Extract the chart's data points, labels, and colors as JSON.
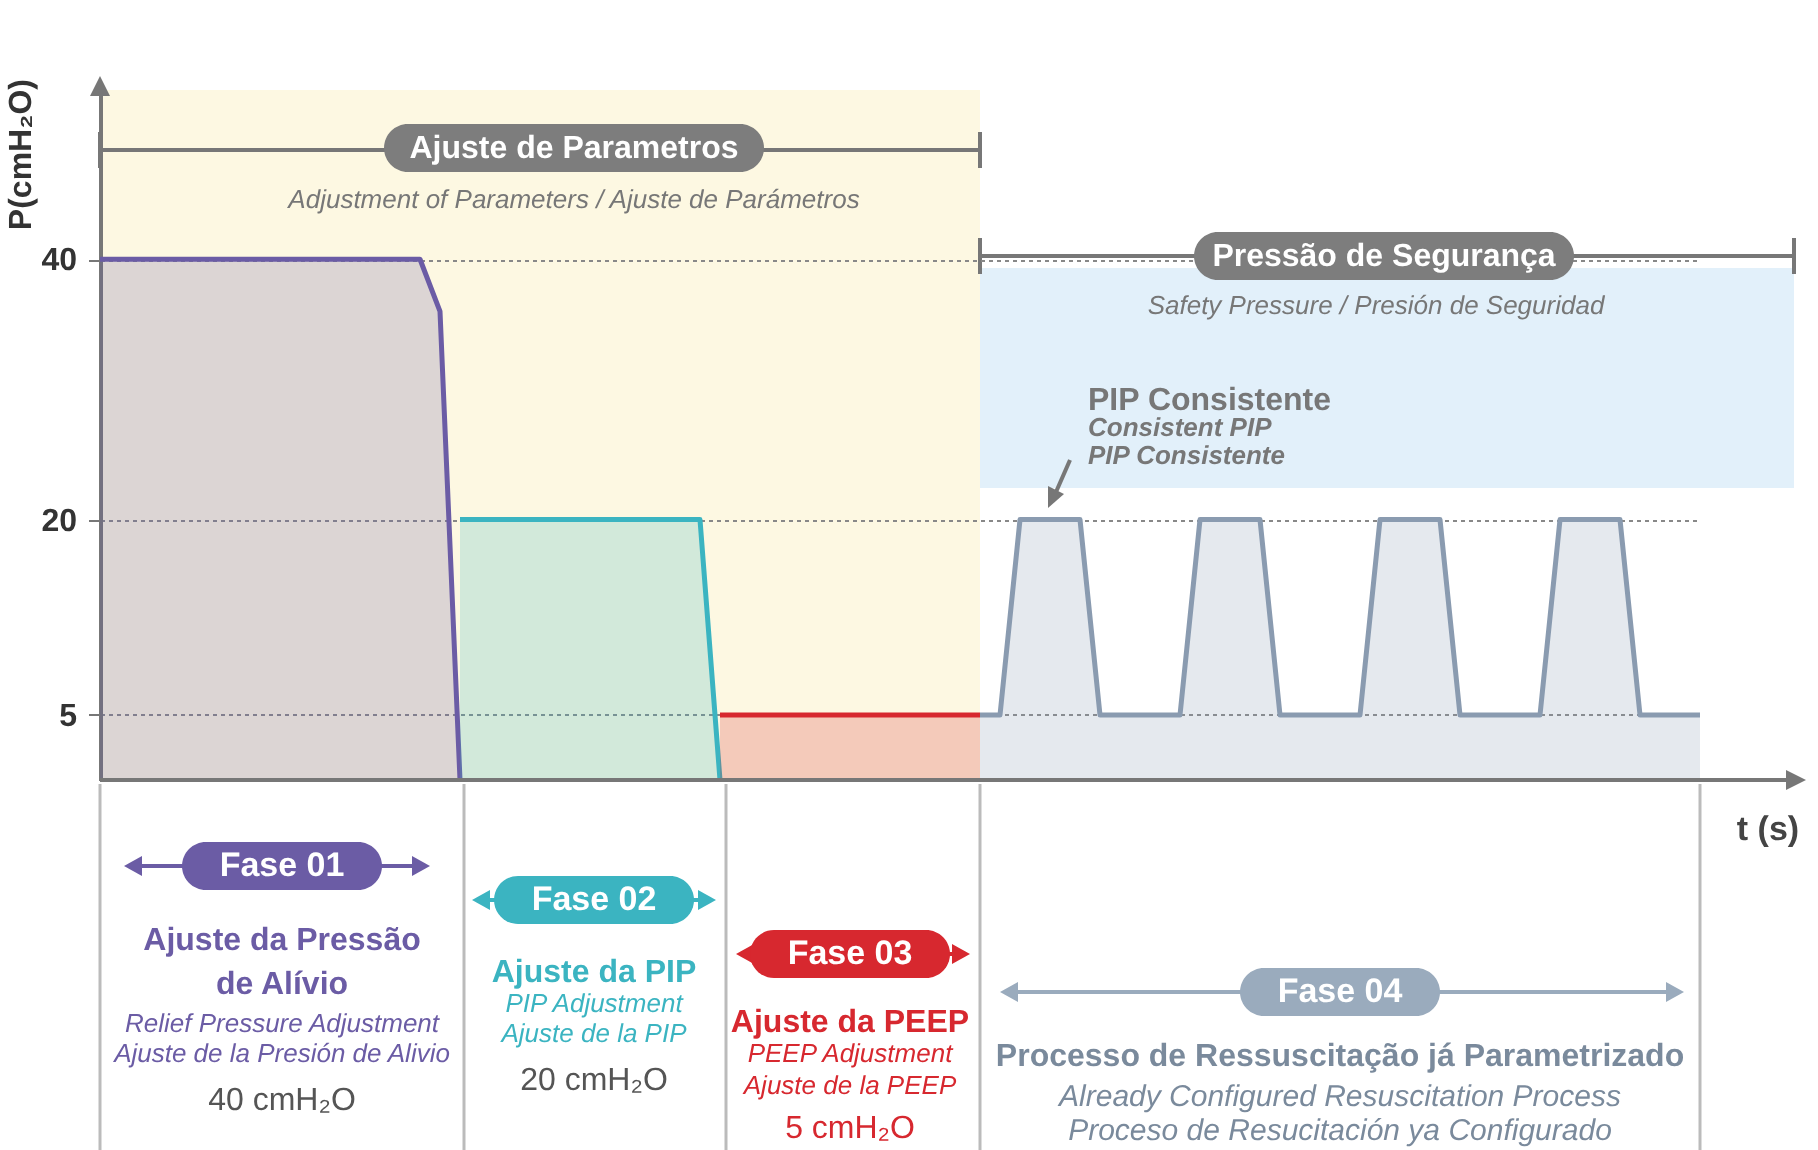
{
  "chart_data": {
    "type": "area",
    "ylabel": "P(cmH₂O)",
    "xlabel": "t (s)",
    "categories": [
      null,
      null,
      null,
      null,
      null,
      null,
      null,
      null,
      null,
      null,
      null,
      null,
      null,
      null,
      null,
      null,
      null,
      null,
      null,
      null,
      null,
      null,
      null,
      null,
      null,
      null,
      null,
      null,
      null,
      null,
      null,
      null,
      null,
      null,
      null,
      null,
      null,
      null,
      null,
      null,
      null,
      null,
      null,
      null,
      null,
      null,
      null,
      null,
      null,
      null,
      null,
      null,
      null,
      null,
      null,
      null,
      null,
      null,
      null,
      null,
      null,
      null,
      null,
      null,
      null,
      null,
      null,
      null,
      null,
      null,
      null,
      null,
      null,
      null,
      null,
      null,
      null,
      null,
      null,
      null,
      null
    ],
    "series": [
      {
        "color": "#6b5ca5",
        "values": [
          40,
          40,
          40,
          40,
          40,
          40,
          40,
          40,
          40,
          40,
          40,
          40,
          40,
          40,
          40,
          40,
          40,
          36,
          0,
          null,
          null,
          null,
          null,
          null,
          null,
          null,
          null,
          null,
          null,
          null,
          null,
          null,
          null,
          null,
          null,
          null,
          null,
          null,
          null,
          null,
          null,
          null,
          null,
          null,
          null,
          null,
          null,
          null,
          null,
          null,
          null,
          null,
          null,
          null,
          null,
          null,
          null,
          null,
          null,
          null,
          null,
          null,
          null,
          null,
          null,
          null,
          null,
          null,
          null,
          null,
          null,
          null,
          null,
          null,
          null,
          null,
          null,
          null,
          null,
          null,
          null
        ]
      },
      {
        "color": "#3bb4c1",
        "values": [
          null,
          null,
          null,
          null,
          null,
          null,
          null,
          null,
          null,
          null,
          null,
          null,
          null,
          null,
          null,
          null,
          null,
          null,
          20,
          20,
          20,
          20,
          20,
          20,
          20,
          20,
          20,
          20,
          20,
          20,
          20,
          0,
          null,
          null,
          null,
          null,
          null,
          null,
          null,
          null,
          null,
          null,
          null,
          null,
          null,
          null,
          null,
          null,
          null,
          null,
          null,
          null,
          null,
          null,
          null,
          null,
          null,
          null,
          null,
          null,
          null,
          null,
          null,
          null,
          null,
          null,
          null,
          null,
          null,
          null,
          null,
          null,
          null,
          null,
          null,
          null,
          null,
          null,
          null,
          null,
          null
        ]
      },
      {
        "color": "#d7282f",
        "values": [
          null,
          null,
          null,
          null,
          null,
          null,
          null,
          null,
          null,
          null,
          null,
          null,
          null,
          null,
          null,
          null,
          null,
          null,
          null,
          null,
          null,
          null,
          null,
          null,
          null,
          null,
          null,
          null,
          null,
          null,
          null,
          5,
          5,
          5,
          5,
          5,
          5,
          5,
          5,
          5,
          5,
          5,
          5,
          5,
          5,
          null,
          null,
          null,
          null,
          null,
          null,
          null,
          null,
          null,
          null,
          null,
          null,
          null,
          null,
          null,
          null,
          null,
          null,
          null,
          null,
          null,
          null,
          null,
          null,
          null,
          null,
          null,
          null,
          null,
          null,
          null,
          null,
          null,
          null,
          null,
          null
        ]
      },
      {
        "color": "#8a9bb0",
        "values": [
          null,
          null,
          null,
          null,
          null,
          null,
          null,
          null,
          null,
          null,
          null,
          null,
          null,
          null,
          null,
          null,
          null,
          null,
          null,
          null,
          null,
          null,
          null,
          null,
          null,
          null,
          null,
          null,
          null,
          null,
          null,
          null,
          null,
          null,
          null,
          null,
          null,
          null,
          null,
          null,
          null,
          null,
          null,
          null,
          5,
          5,
          20,
          20,
          20,
          20,
          5,
          5,
          5,
          5,
          5,
          20,
          20,
          20,
          20,
          5,
          5,
          5,
          5,
          5,
          20,
          20,
          20,
          20,
          5,
          5,
          5,
          5,
          5,
          20,
          20,
          20,
          20,
          5,
          5,
          5,
          5
        ]
      }
    ],
    "ylim": [
      0,
      53
    ],
    "yticks": [
      5,
      20,
      40
    ],
    "grid": "y",
    "annotations": [
      "Ajuste de Parametros",
      "Adjustment of Parameters / Ajuste de Parámetros",
      "Pressão de Segurança",
      "Safety Pressure / Presión de Seguridad",
      "PIP Consistente",
      "Consistent PIP",
      "PIP Consistente",
      "Fase 01",
      "Ajuste da Pressão",
      "de Alívio",
      "Relief Pressure Adjustment",
      "Ajuste de la Presión de Alivio",
      "40 cmH₂O",
      "Fase 02",
      "Ajuste da PIP",
      "PIP Adjustment",
      "Ajuste de la PIP",
      "20 cmH₂O",
      "Fase 03",
      "Ajuste da PEEP",
      "PEEP Adjustment",
      "Ajuste de la PEEP",
      "5 cmH₂O",
      "Fase 04",
      "Processo de Ressuscitação já Parametrizado",
      "Already Configured Resuscitation Process",
      "Proceso de Resucitación ya Configurado"
    ]
  }
}
